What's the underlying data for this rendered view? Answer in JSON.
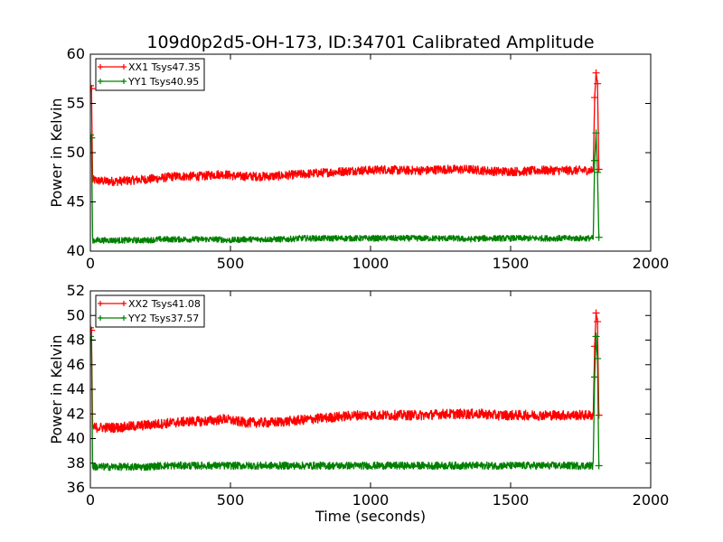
{
  "chart_data": {
    "title": "109d0p2d5-OH-173, ID:34701 Calibrated Amplitude",
    "xlabel": "Time (seconds)",
    "grid": false,
    "legend_position": "top-left",
    "subplots": [
      {
        "type": "line",
        "ylabel": "Power in Kelvin",
        "xlim": [
          0,
          2000
        ],
        "ylim": [
          40,
          60
        ],
        "x_ticks": [
          0,
          500,
          1000,
          1500,
          2000
        ],
        "y_ticks": [
          40,
          45,
          50,
          55,
          60
        ],
        "series": [
          {
            "name": "XX1 Tsys47.35",
            "color": "#ff0000",
            "noise": 0.45,
            "x": [
              0,
              4,
              8,
              12,
              50,
              100,
              150,
              200,
              250,
              300,
              350,
              400,
              450,
              480,
              520,
              560,
              600,
              650,
              700,
              750,
              800,
              850,
              900,
              950,
              1000,
              1050,
              1100,
              1150,
              1200,
              1250,
              1300,
              1350,
              1400,
              1450,
              1500,
              1550,
              1600,
              1650,
              1700,
              1750,
              1795,
              1800,
              1805,
              1810,
              1815
            ],
            "y": [
              56.8,
              56.5,
              47.2,
              47.2,
              47.1,
              47.1,
              47.2,
              47.3,
              47.4,
              47.6,
              47.6,
              47.6,
              47.8,
              47.8,
              47.6,
              47.6,
              47.6,
              47.6,
              47.7,
              47.8,
              47.9,
              48.0,
              48.1,
              48.2,
              48.2,
              48.3,
              48.2,
              48.2,
              48.2,
              48.3,
              48.3,
              48.3,
              48.2,
              48.1,
              48.1,
              48.1,
              48.2,
              48.2,
              48.2,
              48.2,
              48.2,
              55.6,
              58.1,
              57.0,
              48.3
            ]
          },
          {
            "name": "YY1 Tsys40.95",
            "color": "#008000",
            "noise": 0.3,
            "x": [
              0,
              4,
              8,
              12,
              50,
              100,
              150,
              200,
              250,
              300,
              350,
              400,
              450,
              500,
              550,
              600,
              650,
              700,
              750,
              800,
              850,
              900,
              950,
              1000,
              1050,
              1100,
              1150,
              1200,
              1250,
              1300,
              1350,
              1400,
              1450,
              1500,
              1550,
              1600,
              1650,
              1700,
              1750,
              1795,
              1800,
              1805,
              1810,
              1815
            ],
            "y": [
              51.8,
              51.5,
              41.1,
              41.1,
              41.1,
              41.1,
              41.1,
              41.1,
              41.2,
              41.2,
              41.2,
              41.2,
              41.2,
              41.1,
              41.2,
              41.2,
              41.2,
              41.2,
              41.3,
              41.3,
              41.3,
              41.3,
              41.3,
              41.3,
              41.3,
              41.3,
              41.3,
              41.3,
              41.3,
              41.3,
              41.2,
              41.3,
              41.3,
              41.3,
              41.3,
              41.3,
              41.3,
              41.3,
              41.3,
              41.3,
              49.2,
              52.0,
              48.0,
              41.4
            ]
          }
        ]
      },
      {
        "type": "line",
        "ylabel": "Power in Kelvin",
        "xlabel": "Time (seconds)",
        "xlim": [
          0,
          2000
        ],
        "ylim": [
          36,
          52
        ],
        "x_ticks": [
          0,
          500,
          1000,
          1500,
          2000
        ],
        "y_ticks": [
          36,
          38,
          40,
          42,
          44,
          46,
          48,
          50,
          52
        ],
        "series": [
          {
            "name": "XX2 Tsys41.08",
            "color": "#ff0000",
            "noise": 0.4,
            "x": [
              0,
              4,
              8,
              12,
              50,
              100,
              150,
              200,
              250,
              300,
              350,
              400,
              450,
              480,
              520,
              560,
              600,
              650,
              700,
              750,
              800,
              850,
              900,
              950,
              1000,
              1050,
              1100,
              1150,
              1200,
              1250,
              1300,
              1350,
              1400,
              1450,
              1500,
              1550,
              1600,
              1650,
              1700,
              1750,
              1795,
              1800,
              1805,
              1810,
              1815
            ],
            "y": [
              49.0,
              48.8,
              40.9,
              40.9,
              40.9,
              40.9,
              41.0,
              41.1,
              41.2,
              41.3,
              41.4,
              41.4,
              41.5,
              41.6,
              41.4,
              41.3,
              41.3,
              41.3,
              41.4,
              41.5,
              41.6,
              41.7,
              41.8,
              41.9,
              41.9,
              41.9,
              41.9,
              41.9,
              41.9,
              42.0,
              42.0,
              42.0,
              42.0,
              41.9,
              41.9,
              41.9,
              41.9,
              41.9,
              41.9,
              41.9,
              41.9,
              47.5,
              50.2,
              49.5,
              41.9
            ]
          },
          {
            "name": "YY2 Tsys37.57",
            "color": "#008000",
            "noise": 0.3,
            "x": [
              0,
              4,
              8,
              12,
              50,
              100,
              150,
              200,
              250,
              300,
              350,
              400,
              450,
              500,
              550,
              600,
              650,
              700,
              750,
              800,
              850,
              900,
              950,
              1000,
              1050,
              1100,
              1150,
              1200,
              1250,
              1300,
              1350,
              1400,
              1450,
              1500,
              1550,
              1600,
              1650,
              1700,
              1750,
              1795,
              1800,
              1805,
              1810,
              1815
            ],
            "y": [
              48.3,
              48.0,
              37.7,
              37.7,
              37.7,
              37.7,
              37.7,
              37.7,
              37.8,
              37.8,
              37.8,
              37.8,
              37.8,
              37.8,
              37.8,
              37.8,
              37.8,
              37.8,
              37.8,
              37.8,
              37.8,
              37.8,
              37.8,
              37.8,
              37.8,
              37.8,
              37.8,
              37.8,
              37.8,
              37.8,
              37.8,
              37.8,
              37.8,
              37.8,
              37.8,
              37.8,
              37.8,
              37.8,
              37.8,
              37.8,
              45.0,
              48.3,
              46.5,
              37.8
            ]
          }
        ]
      }
    ]
  }
}
